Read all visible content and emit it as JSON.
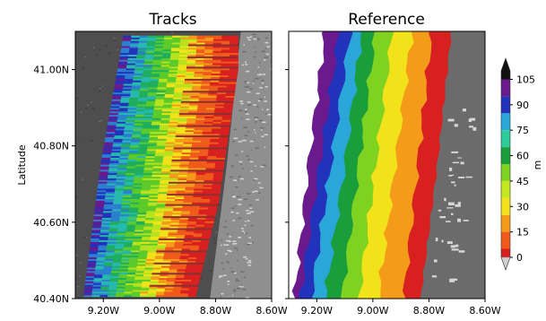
{
  "chart_data": [
    {
      "type": "heatmap",
      "title": "Tracks",
      "xlabel": "",
      "ylabel": "Latitude",
      "xlim": [
        -9.3,
        -8.6
      ],
      "ylim": [
        40.4,
        41.1
      ],
      "x_ticks": [
        -9.2,
        -9.0,
        -8.8,
        -8.6
      ],
      "x_tick_labels": [
        "9.20W",
        "9.00W",
        "8.80W",
        "8.60W"
      ],
      "y_ticks": [
        40.4,
        40.6,
        40.8,
        41.0
      ],
      "y_tick_labels": [
        "40.40N",
        "40.60N",
        "40.80N",
        "41.00N"
      ],
      "swath": {
        "west_edge": [
          [
            -9.13,
            41.08
          ],
          [
            -9.21,
            40.75
          ],
          [
            -9.27,
            40.41
          ]
        ],
        "east_edge": [
          [
            -8.72,
            41.0
          ],
          [
            -8.79,
            40.65
          ],
          [
            -8.87,
            40.41
          ]
        ],
        "value_range": [
          0,
          110
        ]
      }
    },
    {
      "type": "heatmap",
      "title": "Reference",
      "xlim": [
        -9.3,
        -8.6
      ],
      "ylim": [
        40.4,
        41.1
      ],
      "x_ticks": [
        -9.2,
        -9.0,
        -8.8,
        -8.6
      ],
      "x_tick_labels": [
        "9.20W",
        "9.00W",
        "8.80W",
        "8.60W"
      ],
      "contour_bands": [
        {
          "value": 105,
          "color": "#6a1a8c",
          "west": [
            [
              -9.17,
              41.1
            ],
            [
              -9.23,
              40.75
            ],
            [
              -9.28,
              40.4
            ]
          ]
        },
        {
          "value": 90,
          "color": "#2233bb",
          "west": [
            [
              -9.12,
              41.1
            ],
            [
              -9.19,
              40.75
            ],
            [
              -9.26,
              40.4
            ]
          ]
        },
        {
          "value": 75,
          "color": "#2aa6d9",
          "west": [
            [
              -9.08,
              41.1
            ],
            [
              -9.15,
              40.75
            ],
            [
              -9.22,
              40.4
            ]
          ]
        },
        {
          "value": 60,
          "color": "#1a9e3c",
          "west": [
            [
              -9.04,
              41.1
            ],
            [
              -9.1,
              40.75
            ],
            [
              -9.17,
              40.4
            ]
          ]
        },
        {
          "value": 45,
          "color": "#7fd320",
          "west": [
            [
              -8.99,
              41.1
            ],
            [
              -9.05,
              40.75
            ],
            [
              -9.11,
              40.4
            ]
          ]
        },
        {
          "value": 30,
          "color": "#f2e21a",
          "west": [
            [
              -8.93,
              41.1
            ],
            [
              -8.99,
              40.75
            ],
            [
              -9.05,
              40.4
            ]
          ]
        },
        {
          "value": 15,
          "color": "#f59b1a",
          "west": [
            [
              -8.86,
              41.1
            ],
            [
              -8.92,
              40.75
            ],
            [
              -8.98,
              40.4
            ]
          ]
        },
        {
          "value": 0,
          "color": "#d92020",
          "west": [
            [
              -8.79,
              41.1
            ],
            [
              -8.84,
              40.75
            ],
            [
              -8.89,
              40.4
            ]
          ]
        }
      ],
      "coastline": [
        [
          -8.72,
          41.1
        ],
        [
          -8.77,
          40.75
        ],
        [
          -8.83,
          40.4
        ]
      ]
    }
  ],
  "colorbar": {
    "label": "m",
    "ticks": [
      0,
      15,
      30,
      45,
      60,
      75,
      90,
      105
    ],
    "tick_labels": [
      "0",
      "15",
      "30",
      "45",
      "60",
      "75",
      "90",
      "105"
    ],
    "range": [
      0,
      110
    ],
    "colors": [
      "#d0d0d0",
      "#d92020",
      "#f05a1a",
      "#f59b1a",
      "#f2e21a",
      "#c3e81e",
      "#7fd320",
      "#1a9e3c",
      "#2ccd9b",
      "#2aa6d9",
      "#2233bb",
      "#6a1a8c",
      "#111111"
    ]
  }
}
